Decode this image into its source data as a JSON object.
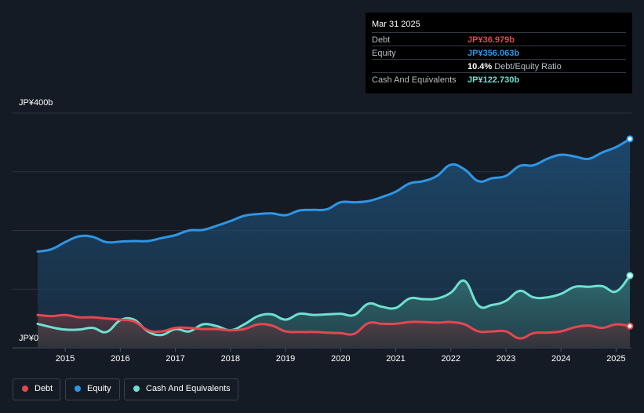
{
  "tooltip": {
    "date": "Mar 31 2025",
    "debt_label": "Debt",
    "debt_value": "JP¥36.979b",
    "equity_label": "Equity",
    "equity_value": "JP¥356.063b",
    "ratio_value": "10.4%",
    "ratio_label": "Debt/Equity Ratio",
    "cash_label": "Cash And Equivalents",
    "cash_value": "JP¥122.730b"
  },
  "legend": {
    "debt": "Debt",
    "equity": "Equity",
    "cash": "Cash And Equivalents"
  },
  "colors": {
    "debt": "#e5474f",
    "equity": "#2e96e6",
    "cash": "#6ee0d0",
    "background": "#151b24"
  },
  "chart_data": {
    "type": "area",
    "ylim": [
      0,
      400
    ],
    "y_unit": "JP¥ billions",
    "y_tick_labels": [
      "JP¥0",
      "JP¥400b"
    ],
    "x_tick_labels": [
      "2015",
      "2016",
      "2017",
      "2018",
      "2019",
      "2020",
      "2021",
      "2022",
      "2023",
      "2024",
      "2025"
    ],
    "x_range": [
      2014.5,
      2025.25
    ],
    "series": [
      {
        "name": "Equity",
        "x": [
          2014.5,
          2014.75,
          2015.0,
          2015.25,
          2015.5,
          2015.75,
          2016.0,
          2016.25,
          2016.5,
          2016.75,
          2017.0,
          2017.25,
          2017.5,
          2017.75,
          2018.0,
          2018.25,
          2018.5,
          2018.75,
          2019.0,
          2019.25,
          2019.5,
          2019.75,
          2020.0,
          2020.25,
          2020.5,
          2020.75,
          2021.0,
          2021.25,
          2021.5,
          2021.75,
          2022.0,
          2022.25,
          2022.5,
          2022.75,
          2023.0,
          2023.25,
          2023.5,
          2023.75,
          2024.0,
          2024.25,
          2024.5,
          2024.75,
          2025.0,
          2025.25
        ],
        "values": [
          164,
          168,
          180,
          190,
          189,
          180,
          181,
          182,
          182,
          187,
          192,
          200,
          201,
          208,
          216,
          225,
          228,
          229,
          226,
          234,
          235,
          236,
          248,
          248,
          250,
          257,
          266,
          280,
          284,
          293,
          312,
          304,
          284,
          289,
          293,
          310,
          311,
          322,
          329,
          326,
          322,
          333,
          342,
          356
        ]
      },
      {
        "name": "Cash And Equivalents",
        "x": [
          2014.5,
          2014.75,
          2015.0,
          2015.25,
          2015.5,
          2015.75,
          2016.0,
          2016.25,
          2016.5,
          2016.75,
          2017.0,
          2017.25,
          2017.5,
          2017.75,
          2018.0,
          2018.25,
          2018.5,
          2018.75,
          2019.0,
          2019.25,
          2019.5,
          2019.75,
          2020.0,
          2020.25,
          2020.5,
          2020.75,
          2021.0,
          2021.25,
          2021.5,
          2021.75,
          2022.0,
          2022.25,
          2022.5,
          2022.75,
          2023.0,
          2023.25,
          2023.5,
          2023.75,
          2024.0,
          2024.25,
          2024.5,
          2024.75,
          2025.0,
          2025.25
        ],
        "values": [
          41,
          35,
          31,
          31,
          34,
          27,
          47,
          48,
          28,
          22,
          32,
          28,
          40,
          37,
          30,
          40,
          54,
          57,
          48,
          58,
          56,
          57,
          58,
          56,
          75,
          70,
          68,
          84,
          83,
          84,
          94,
          114,
          72,
          73,
          80,
          97,
          86,
          86,
          92,
          104,
          104,
          105,
          96,
          123
        ]
      },
      {
        "name": "Debt",
        "x": [
          2014.5,
          2014.75,
          2015.0,
          2015.25,
          2015.5,
          2015.75,
          2016.0,
          2016.25,
          2016.5,
          2016.75,
          2017.0,
          2017.25,
          2017.5,
          2017.75,
          2018.0,
          2018.25,
          2018.5,
          2018.75,
          2019.0,
          2019.25,
          2019.5,
          2019.75,
          2020.0,
          2020.25,
          2020.5,
          2020.75,
          2021.0,
          2021.25,
          2021.5,
          2021.75,
          2022.0,
          2022.25,
          2022.5,
          2022.75,
          2023.0,
          2023.25,
          2023.5,
          2023.75,
          2024.0,
          2024.25,
          2024.5,
          2024.75,
          2025.0,
          2025.25
        ],
        "values": [
          56,
          54,
          56,
          52,
          52,
          50,
          48,
          45,
          30,
          28,
          34,
          34,
          32,
          32,
          30,
          32,
          40,
          38,
          28,
          27,
          27,
          26,
          25,
          24,
          42,
          41,
          41,
          44,
          44,
          43,
          44,
          40,
          28,
          28,
          28,
          16,
          25,
          26,
          28,
          35,
          38,
          34,
          40,
          37
        ]
      }
    ]
  }
}
